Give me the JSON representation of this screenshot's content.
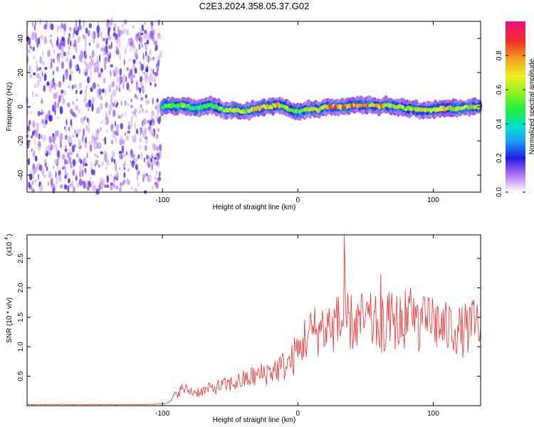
{
  "title": "C2E3.2024.358.05.37.G02",
  "chart_data": [
    {
      "type": "heatmap",
      "xlabel": "Height of straight line (km)",
      "ylabel": "Frequency (Hz)",
      "xlim": [
        -200,
        135
      ],
      "ylim": [
        -50,
        50
      ],
      "x_ticks": [
        -100,
        0,
        100
      ],
      "y_ticks": [
        -40,
        -20,
        0,
        20,
        40
      ],
      "colorbar": {
        "label": "Normalized spectral amplitude",
        "range": [
          0,
          1
        ],
        "ticks": [
          0.0,
          0.2,
          0.4,
          0.6,
          0.8
        ]
      },
      "noise_region": {
        "x": [
          -200,
          -100
        ],
        "y": [
          -50,
          50
        ]
      },
      "ridge": {
        "x": [
          -100,
          -95,
          -90,
          -85,
          -80,
          -75,
          -70,
          -65,
          -60,
          -55,
          -50,
          -45,
          -40,
          -35,
          -30,
          -25,
          -20,
          -15,
          -10,
          -5,
          0,
          5,
          10,
          15,
          20,
          25,
          30,
          35,
          40,
          45,
          50,
          55,
          60,
          65,
          70,
          75,
          80,
          85,
          90,
          95,
          100,
          105,
          110,
          115,
          120,
          125,
          130,
          135
        ],
        "freq": [
          0,
          1,
          0,
          1,
          0,
          -1,
          0,
          1,
          0,
          -2,
          -2,
          -2,
          -3,
          -2,
          -1,
          0,
          0,
          1,
          0,
          -2,
          -3,
          -2,
          -1,
          -2,
          0,
          0,
          0,
          0,
          1,
          1,
          1,
          1,
          0,
          1,
          0,
          0,
          -1,
          -1,
          -2,
          -2,
          -2,
          -1,
          -1,
          -1,
          -1,
          0,
          0,
          0
        ],
        "amplitude": [
          0.55,
          0.6,
          0.5,
          0.6,
          0.55,
          0.5,
          0.6,
          0.55,
          0.5,
          0.6,
          0.65,
          0.7,
          0.65,
          0.7,
          0.75,
          0.7,
          0.8,
          0.85,
          0.7,
          0.6,
          0.65,
          0.7,
          0.75,
          0.7,
          0.8,
          0.85,
          0.9,
          0.85,
          0.8,
          0.85,
          0.8,
          0.85,
          0.8,
          0.75,
          0.7,
          0.7,
          0.65,
          0.7,
          0.75,
          0.7,
          0.75,
          0.7,
          0.75,
          0.7,
          0.75,
          0.7,
          0.75,
          0.7
        ]
      }
    },
    {
      "type": "line",
      "xlabel": "Height of straight line (km)",
      "ylabel": "SNR (10 * v/v)",
      "y_multiplier": "(x10",
      "y_multiplier_exp": "4",
      "xlim": [
        -200,
        135
      ],
      "ylim": [
        0,
        2.9
      ],
      "x_ticks": [
        -100,
        0,
        100
      ],
      "y_ticks": [
        0.5,
        1.0,
        1.5,
        2.0,
        2.5
      ],
      "y_tick_labels": [
        "0.5",
        "1.0",
        "1.5",
        "2.0",
        "2.5"
      ],
      "series": [
        {
          "color": "#ee3333",
          "x": [
            -200,
            -150,
            -110,
            -100,
            -95,
            -92,
            -90,
            -85,
            -80,
            -75,
            -70,
            -65,
            -60,
            -55,
            -50,
            -45,
            -40,
            -35,
            -30,
            -25,
            -20,
            -15,
            -10,
            -5,
            0,
            5,
            10,
            15,
            20,
            25,
            30,
            35,
            40,
            45,
            50,
            55,
            60,
            65,
            70,
            75,
            80,
            85,
            90,
            95,
            100,
            105,
            110,
            115,
            120,
            125,
            130,
            135
          ],
          "y": [
            0.02,
            0.02,
            0.02,
            0.03,
            0.05,
            0.12,
            0.18,
            0.25,
            0.22,
            0.2,
            0.22,
            0.25,
            0.28,
            0.3,
            0.32,
            0.35,
            0.38,
            0.42,
            0.45,
            0.48,
            0.52,
            0.55,
            0.6,
            0.65,
            0.85,
            1.1,
            1.2,
            1.25,
            1.3,
            1.3,
            1.35,
            1.4,
            1.35,
            1.35,
            1.4,
            1.35,
            1.3,
            1.35,
            1.4,
            1.35,
            1.45,
            1.4,
            1.35,
            1.3,
            1.4,
            1.3,
            1.25,
            1.3,
            1.2,
            1.25,
            1.3,
            1.35
          ]
        }
      ]
    }
  ]
}
